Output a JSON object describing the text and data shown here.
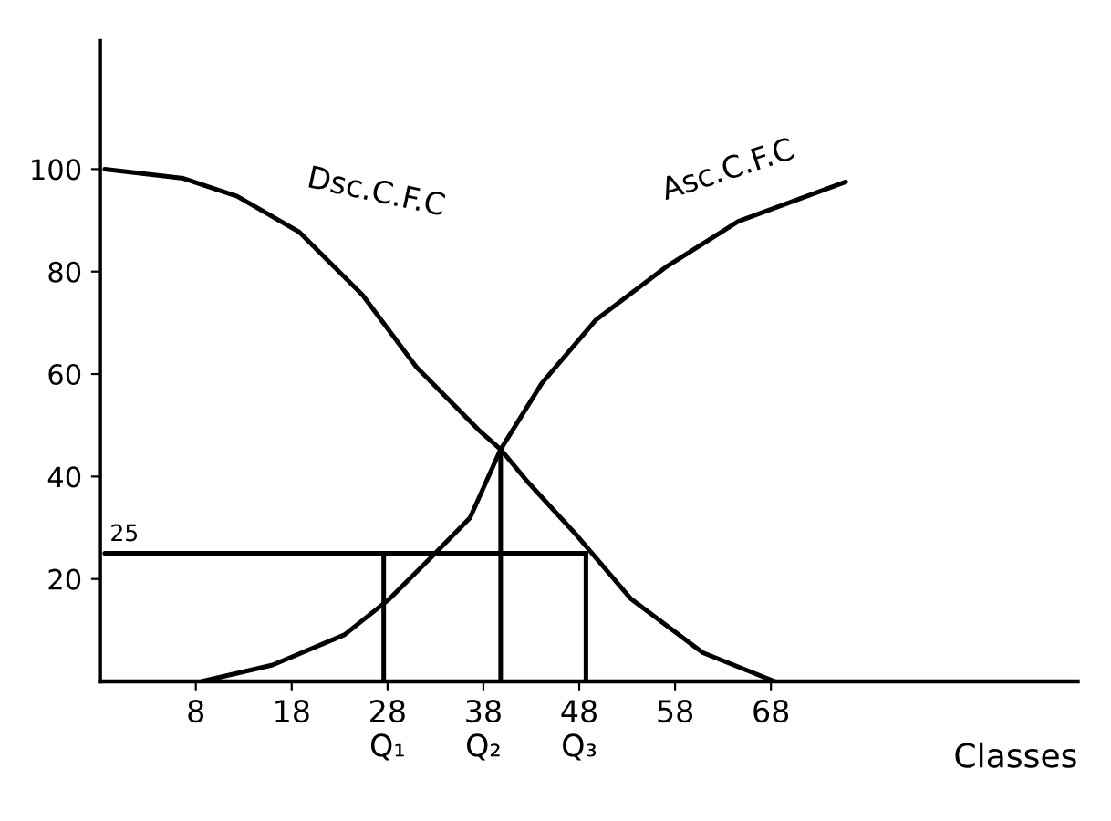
{
  "chart_data": {
    "type": "line",
    "xlabel": "Classes",
    "xlim": [
      -2,
      100
    ],
    "ylim": [
      0,
      125
    ],
    "xticks": [
      8,
      18,
      {
        "value": 28,
        "label": "28\nQ₁"
      },
      {
        "value": 38,
        "label": "38\nQ₂"
      },
      {
        "value": 48,
        "label": "48\nQ₃"
      },
      58,
      68
    ],
    "yticks": [
      20,
      40,
      60,
      80,
      100
    ],
    "grid": false,
    "legend": false,
    "marker": "none",
    "line_style": "solid",
    "series": [
      {
        "name": "Dsc.C.F.C",
        "color": "#000000",
        "x": [
          -1.5,
          6.7,
          12.3,
          18.8,
          25.4,
          31,
          37.5,
          39.8,
          42.6,
          47.8,
          53.4,
          60.9,
          68.4
        ],
        "values": [
          100,
          98.2,
          94.7,
          87.7,
          75.4,
          61.4,
          49.1,
          45.3,
          39,
          28.4,
          16.1,
          5.6,
          0
        ]
      },
      {
        "name": "Asc.C.F.C",
        "color": "#000000",
        "x": [
          8.6,
          16,
          23.5,
          28.2,
          32.9,
          36.6,
          39.8,
          44.1,
          49.7,
          57.2,
          64.6,
          75.8
        ],
        "values": [
          0,
          3.2,
          9.1,
          16.1,
          24.9,
          31.9,
          45.3,
          58.2,
          70.5,
          81.1,
          89.8,
          97.5
        ]
      },
      {
        "color": "#000000",
        "x": [
          -1.5,
          48.7
        ],
        "values": [
          25,
          25
        ]
      },
      {
        "color": "#000000",
        "x": [
          27.6,
          27.6
        ],
        "values": [
          0,
          25
        ]
      },
      {
        "color": "#000000",
        "x": [
          39.8,
          39.8
        ],
        "values": [
          0,
          45.3
        ]
      },
      {
        "color": "#000000",
        "x": [
          48.7,
          48.7
        ],
        "values": [
          0,
          25
        ]
      }
    ],
    "annotations": [
      {
        "text": "25",
        "x": -1.5,
        "y": 25
      }
    ]
  }
}
